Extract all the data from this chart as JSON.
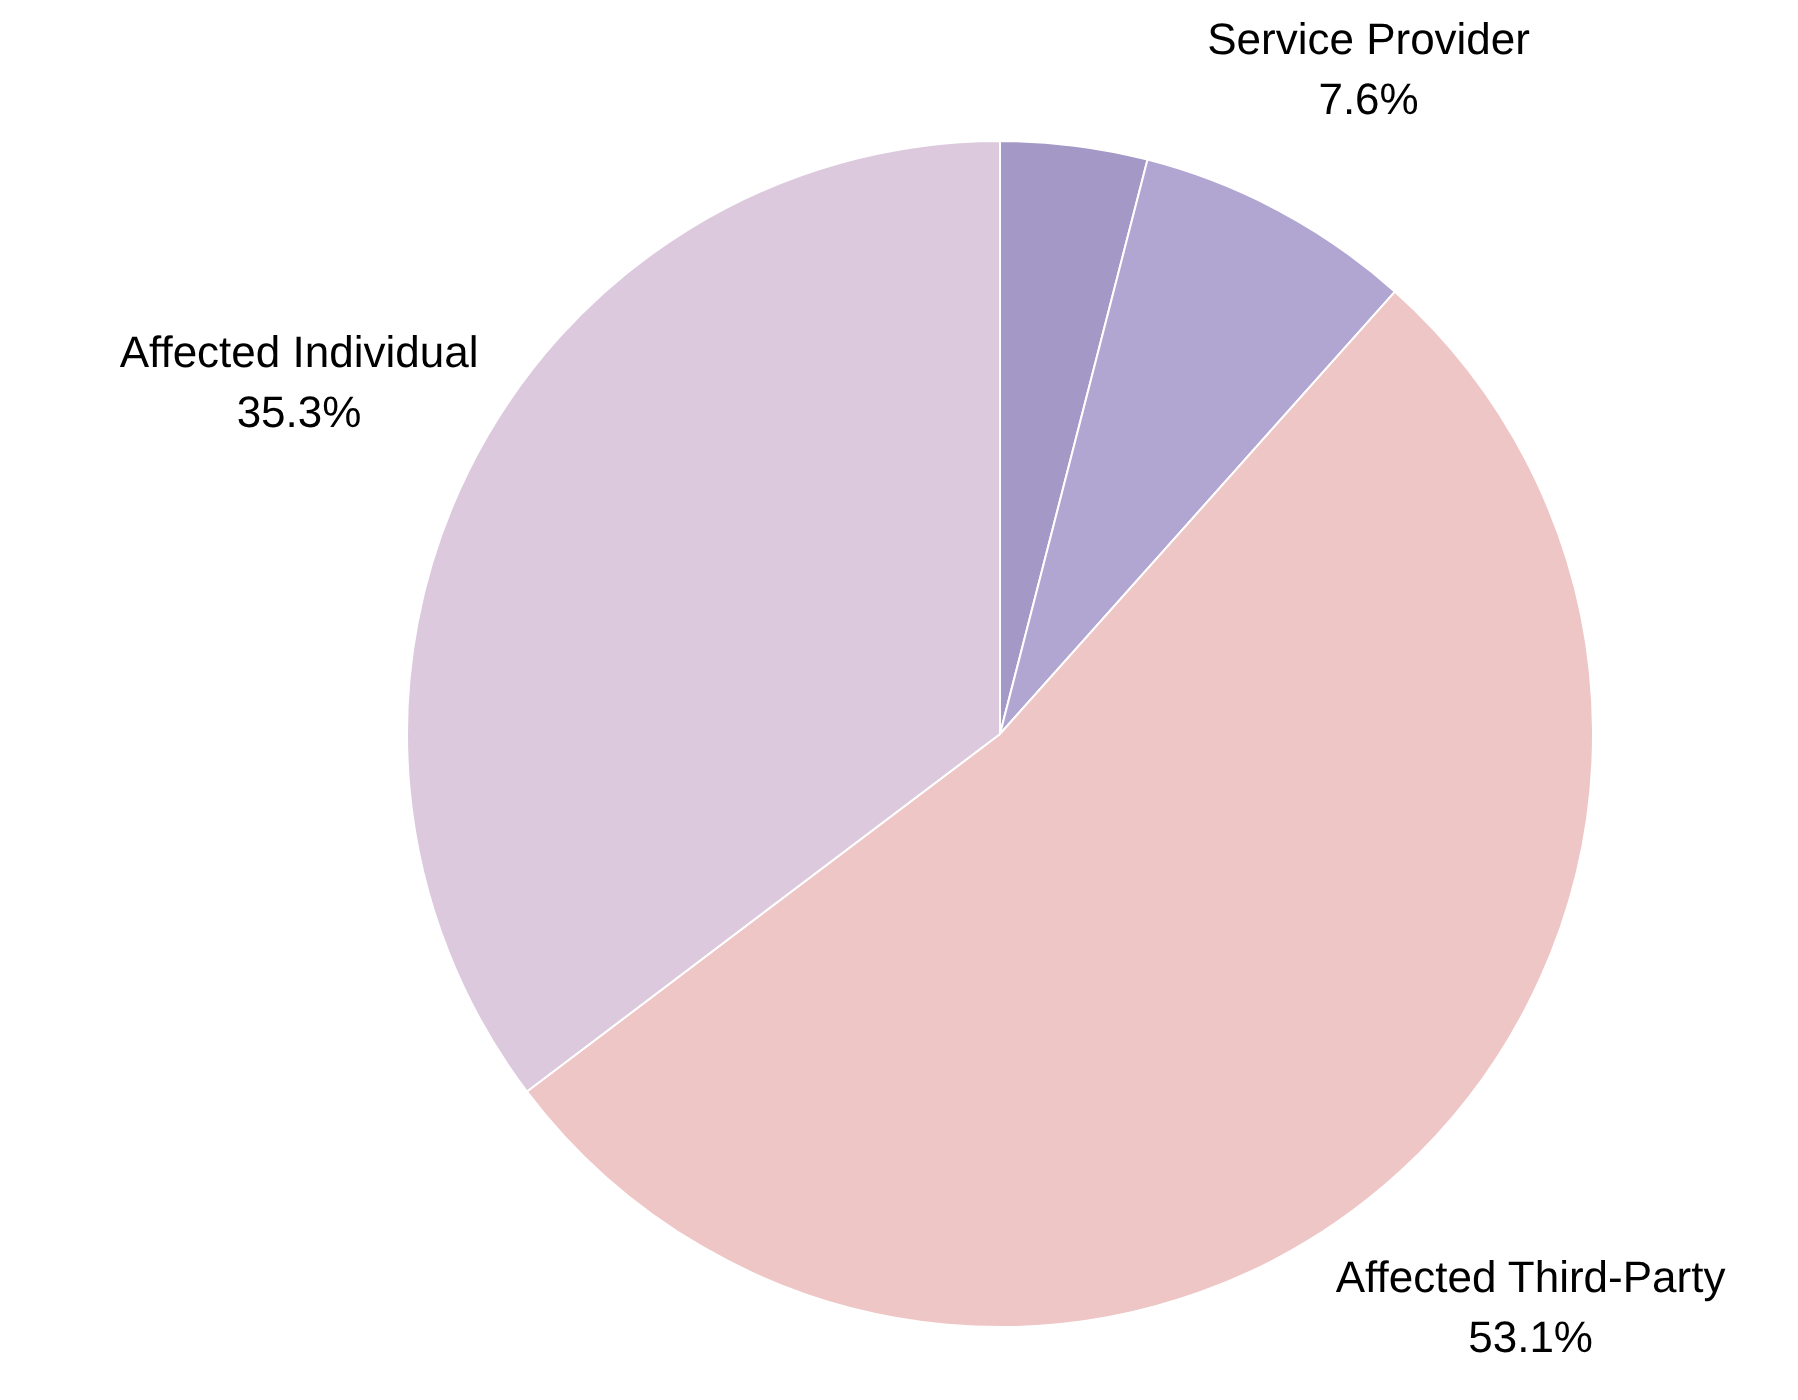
{
  "chart_data": {
    "type": "pie",
    "categories": [
      null,
      "Service Provider",
      "Affected Third-Party",
      "Affected Individual"
    ],
    "values": [
      4.0,
      7.6,
      53.1,
      35.3
    ],
    "colors": [
      "#a398c6",
      "#b1a5d2",
      "#eec6c6",
      "#ddc9de"
    ],
    "value_labels": [
      null,
      "7.6%",
      "53.1%",
      "35.3%"
    ],
    "legend": false
  }
}
